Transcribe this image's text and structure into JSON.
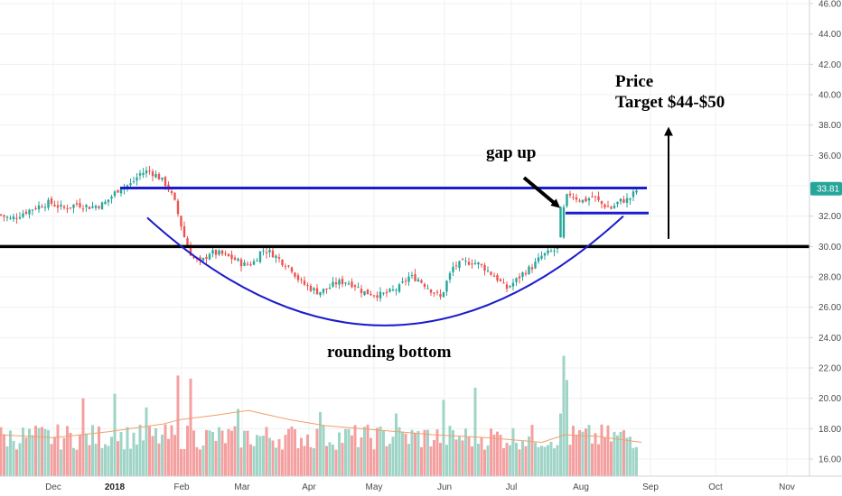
{
  "chart_data": {
    "type": "candlestick",
    "y_axis": {
      "ylim": [
        15.2,
        46.2
      ],
      "ticks": [
        "16.00",
        "18.00",
        "20.00",
        "22.00",
        "24.00",
        "26.00",
        "28.00",
        "30.00",
        "32.00",
        "34.00",
        "36.00",
        "38.00",
        "40.00",
        "42.00",
        "44.00",
        "46.00"
      ]
    },
    "x_axis": {
      "labels": [
        "Dec",
        "2018",
        "Feb",
        "Mar",
        "Apr",
        "May",
        "Jun",
        "Jul",
        "Aug",
        "Sep",
        "Oct",
        "Nov"
      ]
    },
    "last_price": "33.81",
    "colors": {
      "up": "#26a69a",
      "down": "#ef5350",
      "volume_up": "#9fd4c6",
      "volume_down": "#f4a0a0",
      "resistance": "#1c1ccc",
      "support": "#000000",
      "badge": "#26a69a",
      "ma": "#f29f6a"
    },
    "close_waypoints": [
      [
        0,
        32.1
      ],
      [
        12,
        31.8
      ],
      [
        25,
        32.2
      ],
      [
        40,
        32.6
      ],
      [
        55,
        32.9
      ],
      [
        70,
        32.5
      ],
      [
        85,
        32.8
      ],
      [
        100,
        32.6
      ],
      [
        115,
        32.8
      ],
      [
        125,
        33.4
      ],
      [
        133,
        33.9
      ],
      [
        145,
        34.1
      ],
      [
        155,
        34.8
      ],
      [
        165,
        35.0
      ],
      [
        175,
        34.6
      ],
      [
        185,
        34.0
      ],
      [
        193,
        33.0
      ],
      [
        200,
        31.5
      ],
      [
        206,
        30.2
      ],
      [
        213,
        29.3
      ],
      [
        222,
        28.9
      ],
      [
        232,
        29.6
      ],
      [
        245,
        29.5
      ],
      [
        258,
        29.2
      ],
      [
        270,
        28.8
      ],
      [
        280,
        28.9
      ],
      [
        290,
        29.8
      ],
      [
        300,
        29.6
      ],
      [
        312,
        29.0
      ],
      [
        322,
        28.6
      ],
      [
        332,
        27.7
      ],
      [
        342,
        27.3
      ],
      [
        352,
        27.0
      ],
      [
        362,
        27.2
      ],
      [
        372,
        27.6
      ],
      [
        382,
        27.7
      ],
      [
        392,
        27.5
      ],
      [
        402,
        27.0
      ],
      [
        412,
        26.9
      ],
      [
        422,
        26.8
      ],
      [
        432,
        27.0
      ],
      [
        442,
        27.3
      ],
      [
        452,
        28.0
      ],
      [
        462,
        27.9
      ],
      [
        472,
        27.4
      ],
      [
        482,
        26.9
      ],
      [
        488,
        26.6
      ],
      [
        494,
        27.6
      ],
      [
        502,
        28.7
      ],
      [
        512,
        28.9
      ],
      [
        522,
        29.0
      ],
      [
        532,
        28.8
      ],
      [
        542,
        28.3
      ],
      [
        552,
        27.8
      ],
      [
        560,
        27.2
      ],
      [
        570,
        27.7
      ],
      [
        580,
        28.3
      ],
      [
        590,
        28.7
      ],
      [
        600,
        29.4
      ],
      [
        608,
        29.6
      ],
      [
        616,
        29.8
      ],
      [
        621,
        30.6
      ],
      [
        624,
        32.9
      ],
      [
        630,
        33.5
      ],
      [
        638,
        33.2
      ],
      [
        646,
        33.0
      ],
      [
        656,
        33.3
      ],
      [
        666,
        32.8
      ],
      [
        676,
        32.5
      ],
      [
        686,
        33.0
      ],
      [
        696,
        33.1
      ],
      [
        706,
        33.81
      ]
    ],
    "volume": {
      "ylim": [
        15.2,
        23.0
      ],
      "spikes": [
        [
          93,
          20.0
        ],
        [
          128,
          20.3
        ],
        [
          161,
          19.4
        ],
        [
          196,
          21.5
        ],
        [
          211,
          21.3
        ],
        [
          262,
          19.3
        ],
        [
          353,
          19.1
        ],
        [
          438,
          19.0
        ],
        [
          491,
          19.9
        ],
        [
          527,
          20.7
        ],
        [
          620,
          19.0
        ],
        [
          623,
          22.8
        ],
        [
          627,
          21.2
        ]
      ],
      "ma_waypoints": [
        [
          0,
          17.6
        ],
        [
          60,
          17.4
        ],
        [
          120,
          17.8
        ],
        [
          180,
          18.3
        ],
        [
          200,
          18.6
        ],
        [
          240,
          18.9
        ],
        [
          275,
          19.2
        ],
        [
          320,
          18.6
        ],
        [
          360,
          18.2
        ],
        [
          420,
          17.9
        ],
        [
          480,
          17.6
        ],
        [
          540,
          17.4
        ],
        [
          600,
          17.1
        ],
        [
          625,
          17.6
        ],
        [
          660,
          17.5
        ],
        [
          710,
          17.1
        ]
      ]
    },
    "annotations": {
      "price_target_line1": "Price",
      "price_target_line2": "Target $44-$50",
      "gap_up": "gap up",
      "rounding_bottom": "rounding bottom"
    },
    "resistance_level": 33.85,
    "support_level": 30.0,
    "flag_low": 32.2,
    "bowl": {
      "start": [
        2018.1,
        31.9
      ],
      "bottom": 24.8,
      "end": [
        2018.7,
        32.0
      ]
    },
    "target_arrow": {
      "from": 30.5,
      "to": 38.0
    }
  }
}
